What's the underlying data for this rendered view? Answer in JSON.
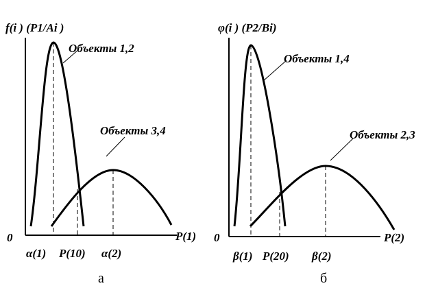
{
  "left_panel": {
    "y_label": "f(i ) (P1/Ai )",
    "origin_label": "0",
    "x_label": "P(1)",
    "curve_labels": [
      "Объекты 1,2",
      "Объекты 3,4"
    ],
    "ticks": [
      "α(1)",
      "P(10)",
      "α(2)"
    ],
    "caption": "а"
  },
  "right_panel": {
    "y_label": "φ(i ) (P2/Bi)",
    "origin_label": "0",
    "x_label": "P(2)",
    "curve_labels": [
      "Объекты 1,4",
      "Объекты 2,3"
    ],
    "ticks": [
      "β(1)",
      "P(20)",
      "β(2)"
    ],
    "caption": "б"
  }
}
